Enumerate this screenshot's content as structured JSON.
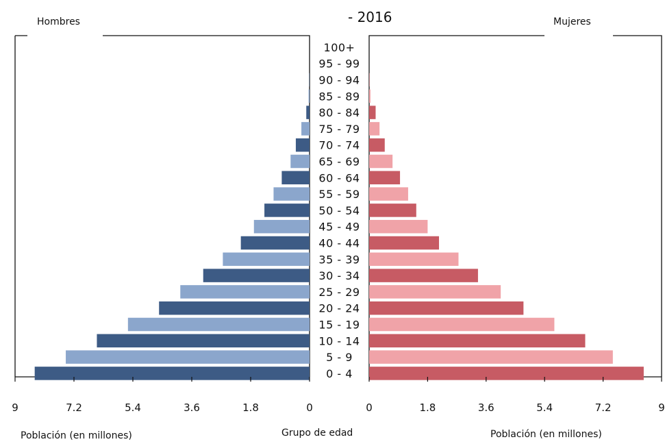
{
  "chart_data": {
    "type": "bar",
    "title": "- 2016",
    "left_panel_label": "Hombres",
    "right_panel_label": "Mujeres",
    "xlabel_left": "Población (en millones)",
    "xlabel_right": "Población (en millones)",
    "center_label": "Grupo de edad",
    "xlim": [
      0,
      9
    ],
    "ticks": [
      "9",
      "7.2",
      "5.4",
      "3.6",
      "1.8",
      "0",
      "0",
      "1.8",
      "3.6",
      "5.4",
      "7.2",
      "9"
    ],
    "tick_values_left": [
      9,
      7.2,
      5.4,
      3.6,
      1.8,
      0
    ],
    "tick_values_right": [
      0,
      1.8,
      3.6,
      5.4,
      7.2,
      9
    ],
    "categories": [
      "100+",
      "95 - 99",
      "90 - 94",
      "85 - 89",
      "80 - 84",
      "75 - 79",
      "70 - 74",
      "65 - 69",
      "60 - 64",
      "55 - 59",
      "50 - 54",
      "45 - 49",
      "40 - 44",
      "35 - 39",
      "30 - 34",
      "25 - 29",
      "20 - 24",
      "15 - 19",
      "10 - 14",
      "5 - 9",
      "0 - 4"
    ],
    "series": [
      {
        "name": "Hombres",
        "values": [
          0.0,
          0.0,
          0.01,
          0.03,
          0.1,
          0.25,
          0.42,
          0.58,
          0.85,
          1.1,
          1.38,
          1.7,
          2.1,
          2.65,
          3.25,
          3.95,
          4.6,
          5.55,
          6.5,
          7.45,
          8.4
        ],
        "colors": [
          "#3d5b85",
          "#8ba6cc"
        ]
      },
      {
        "name": "Mujeres",
        "values": [
          0.0,
          0.0,
          0.01,
          0.04,
          0.2,
          0.32,
          0.48,
          0.72,
          0.95,
          1.2,
          1.45,
          1.8,
          2.15,
          2.75,
          3.35,
          4.05,
          4.75,
          5.7,
          6.65,
          7.5,
          8.45
        ],
        "colors": [
          "#c75b64",
          "#f0a3a8"
        ]
      }
    ]
  }
}
